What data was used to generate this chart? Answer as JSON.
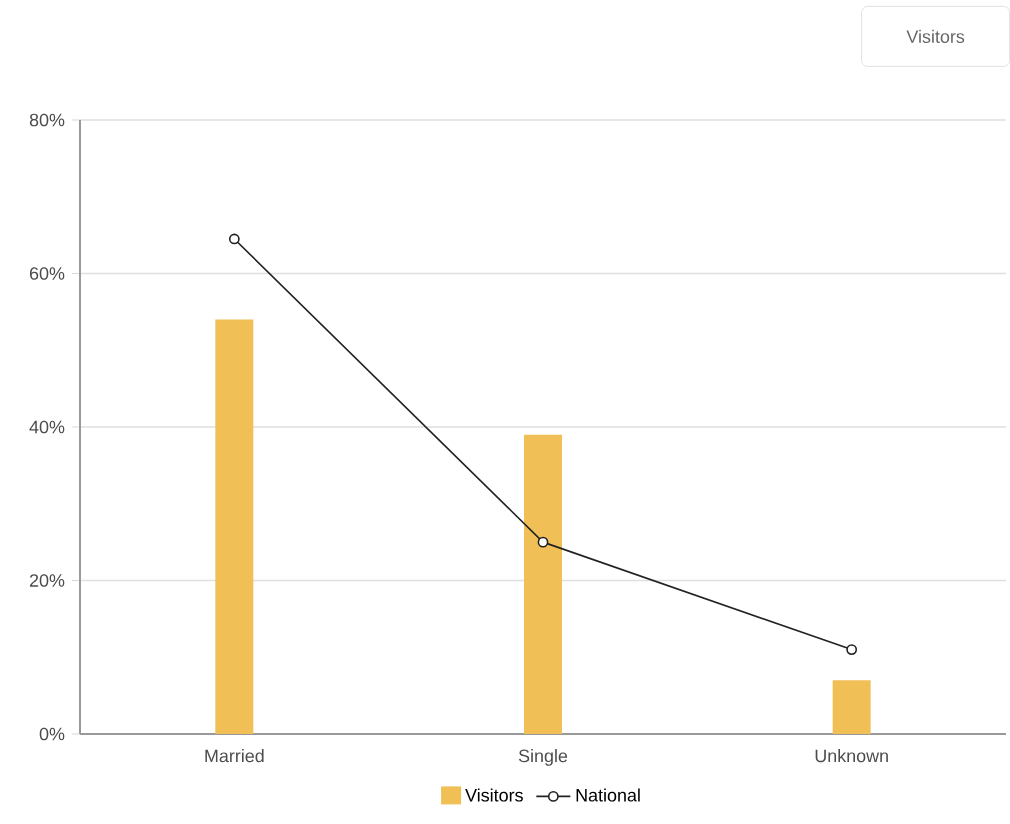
{
  "chart_data": {
    "type": "bar",
    "categories": [
      "Married",
      "Single",
      "Unknown"
    ],
    "series": [
      {
        "name": "Visitors",
        "color": "#f0bf55",
        "values": [
          54,
          39,
          7
        ]
      },
      {
        "name": "National",
        "type": "line",
        "color": "#222222",
        "values": [
          64.5,
          25,
          11
        ],
        "marker": "circle"
      }
    ],
    "ylim": [
      0,
      80
    ],
    "yticks": [
      {
        "value": 0,
        "label": "0%"
      },
      {
        "value": 20,
        "label": "20%"
      },
      {
        "value": 40,
        "label": "40%"
      },
      {
        "value": 60,
        "label": "60%"
      },
      {
        "value": 80,
        "label": "80%"
      }
    ],
    "grid": "y",
    "legend": "bottom",
    "annotations": [
      "Visitors"
    ]
  }
}
